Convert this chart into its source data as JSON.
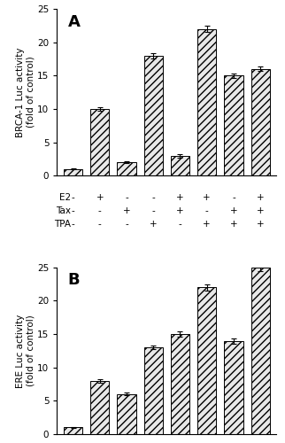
{
  "panel_A": {
    "title": "A",
    "ylabel": "BRCA-1 Luc activity\n(fold of control)",
    "ylim": [
      0,
      25
    ],
    "yticks": [
      0,
      5,
      10,
      15,
      20,
      25
    ],
    "values": [
      1,
      10,
      2,
      18,
      3,
      22,
      15,
      16
    ],
    "errors": [
      0.1,
      0.3,
      0.15,
      0.4,
      0.25,
      0.5,
      0.3,
      0.35
    ],
    "E2": [
      "-",
      "+",
      "-",
      "-",
      "+",
      "+",
      "-",
      "+"
    ],
    "Tax": [
      "-",
      "-",
      "+",
      "-",
      "+",
      "-",
      "+",
      "+"
    ],
    "TPA": [
      "-",
      "-",
      "-",
      "+",
      "-",
      "+",
      "+",
      "+"
    ]
  },
  "panel_B": {
    "title": "B",
    "ylabel": "ERE Luc activity\n(fold of control)",
    "ylim": [
      0,
      25
    ],
    "yticks": [
      0,
      5,
      10,
      15,
      20,
      25
    ],
    "values": [
      1,
      8,
      6,
      13,
      15,
      22,
      14,
      25
    ],
    "errors": [
      0.1,
      0.25,
      0.2,
      0.3,
      0.35,
      0.45,
      0.4,
      0.5
    ],
    "E2": [
      "-",
      "+",
      "-",
      "-",
      "+",
      "+",
      "-",
      "+"
    ],
    "Tax": [
      "-",
      "-",
      "+",
      "-",
      "+",
      "-",
      "+",
      "+"
    ],
    "TPA": [
      "-",
      "-",
      "-",
      "+",
      "-",
      "+",
      "+",
      "+"
    ]
  },
  "bar_facecolor": "#e8e8e8",
  "hatch": "////",
  "bar_width": 0.7,
  "label_fontsize": 7.5,
  "tick_fontsize": 7.5,
  "title_fontsize": 13,
  "row_label_fontsize": 7.5
}
